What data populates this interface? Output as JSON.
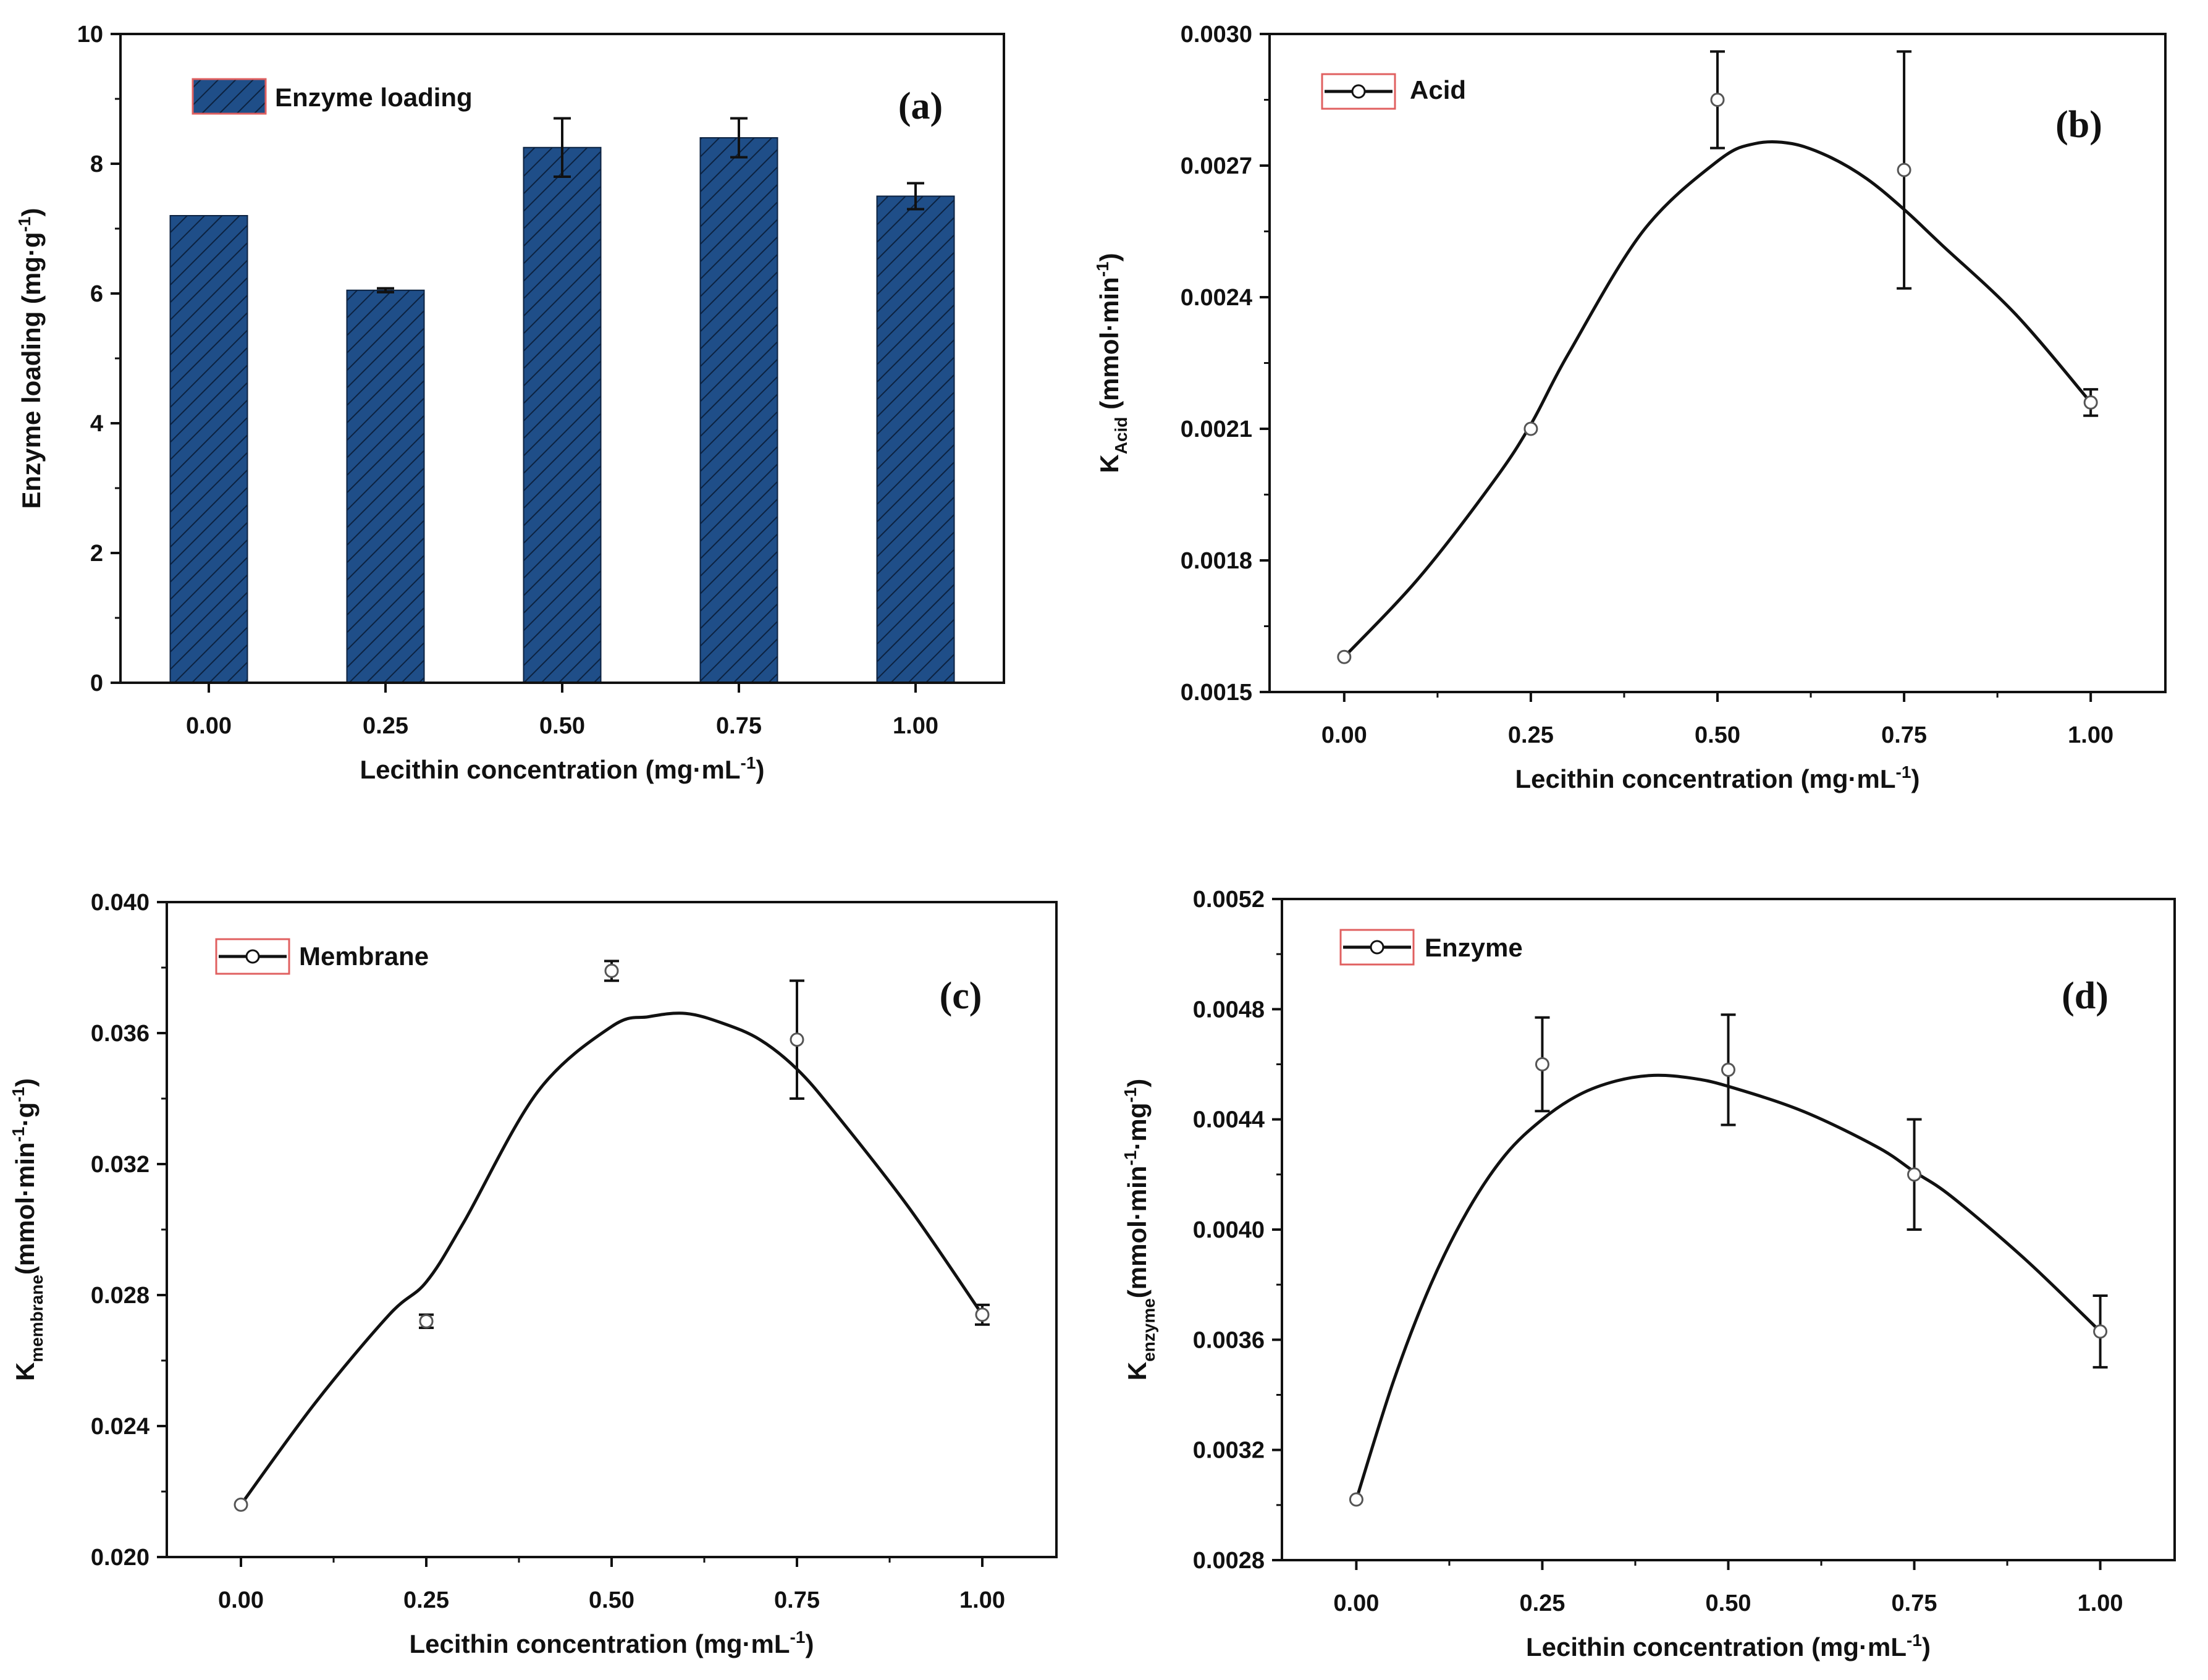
{
  "figure": {
    "xlabel_text": "Lecithin concentration (mg·mL",
    "xlabel_exp": "-1",
    "xlabel_close": ")"
  },
  "colors": {
    "bar_fill": "#1f4e88",
    "bar_hatch": "#0c2240",
    "legend_border": "#e06060",
    "line": "#111111",
    "axis": "#111111"
  },
  "chart_data": [
    {
      "panel": "(a)",
      "type": "bar",
      "categories": [
        "0.00",
        "0.25",
        "0.50",
        "0.75",
        "1.00"
      ],
      "values": [
        7.2,
        6.05,
        8.25,
        8.4,
        7.5
      ],
      "errors": [
        0,
        0.03,
        0.45,
        0.3,
        0.2
      ],
      "legend": "Enzyme loading",
      "ylabel": "Enzyme loading (mg·g",
      "ylabel_exp": "-1",
      "ylabel_close": ")",
      "ylim": [
        0,
        10
      ],
      "yticks": [
        "0",
        "2",
        "4",
        "6",
        "8",
        "10"
      ],
      "ytick_values": [
        0,
        2,
        4,
        6,
        8,
        10
      ]
    },
    {
      "panel": "(b)",
      "type": "line",
      "x": [
        0,
        0.25,
        0.5,
        0.75,
        1.0
      ],
      "y": [
        0.00158,
        0.0021,
        0.00285,
        0.00269,
        0.00216
      ],
      "errors": [
        0,
        0,
        0.00011,
        0.00027,
        3e-05
      ],
      "fit_x": [
        0,
        0.1,
        0.2,
        0.25,
        0.3,
        0.4,
        0.5,
        0.55,
        0.6,
        0.65,
        0.7,
        0.75,
        0.8,
        0.9,
        1.0
      ],
      "fit_y": [
        0.00158,
        0.00176,
        0.00198,
        0.00211,
        0.00227,
        0.00255,
        0.00271,
        0.00275,
        0.00275,
        0.00272,
        0.00267,
        0.0026,
        0.00252,
        0.00236,
        0.00216
      ],
      "legend": "Acid",
      "ylabel_main": "K",
      "ylabel_sub": "Acid",
      "ylabel_rest": " (mmol·min",
      "ylabel_exp": "-1",
      "ylabel_close": ")",
      "ylim": [
        0.0015,
        0.003
      ],
      "yticks": [
        "0.0015",
        "0.0018",
        "0.0021",
        "0.0024",
        "0.0027",
        "0.0030"
      ],
      "ytick_values": [
        0.0015,
        0.0018,
        0.0021,
        0.0024,
        0.0027,
        0.003
      ],
      "xticks": [
        "0.00",
        "0.25",
        "0.50",
        "0.75",
        "1.00"
      ],
      "xtick_values": [
        0,
        0.25,
        0.5,
        0.75,
        1.0
      ],
      "xlim": [
        -0.1,
        1.1
      ]
    },
    {
      "panel": "(c)",
      "type": "line",
      "x": [
        0,
        0.25,
        0.5,
        0.75,
        1.0
      ],
      "y": [
        0.0216,
        0.0272,
        0.0379,
        0.0358,
        0.0274
      ],
      "errors": [
        0,
        0.0002,
        0.0003,
        0.0018,
        0.0003
      ],
      "fit_x": [
        0,
        0.1,
        0.2,
        0.25,
        0.3,
        0.4,
        0.5,
        0.55,
        0.6,
        0.65,
        0.7,
        0.75,
        0.8,
        0.9,
        1.0
      ],
      "fit_y": [
        0.0216,
        0.0247,
        0.0274,
        0.0284,
        0.0302,
        0.0342,
        0.0362,
        0.0365,
        0.0366,
        0.0363,
        0.0358,
        0.0349,
        0.0336,
        0.0307,
        0.0274
      ],
      "legend": "Membrane",
      "ylabel_main": "K",
      "ylabel_sub": "membrane",
      "ylabel_rest": "(mmol·min",
      "ylabel_exp": "-1",
      "ylabel_mid": "·g",
      "ylabel_exp2": "-1",
      "ylabel_close": ")",
      "ylim": [
        0.02,
        0.04
      ],
      "yticks": [
        "0.020",
        "0.024",
        "0.028",
        "0.032",
        "0.036",
        "0.040"
      ],
      "ytick_values": [
        0.02,
        0.024,
        0.028,
        0.032,
        0.036,
        0.04
      ],
      "xticks": [
        "0.00",
        "0.25",
        "0.50",
        "0.75",
        "1.00"
      ],
      "xtick_values": [
        0,
        0.25,
        0.5,
        0.75,
        1.0
      ],
      "xlim": [
        -0.1,
        1.1
      ]
    },
    {
      "panel": "(d)",
      "type": "line",
      "x": [
        0,
        0.25,
        0.5,
        0.75,
        1.0
      ],
      "y": [
        0.00302,
        0.0046,
        0.00458,
        0.0042,
        0.00363
      ],
      "errors": [
        0,
        0.00017,
        0.0002,
        0.0002,
        0.00013
      ],
      "fit_x": [
        0,
        0.05,
        0.1,
        0.15,
        0.2,
        0.25,
        0.3,
        0.35,
        0.4,
        0.45,
        0.5,
        0.6,
        0.7,
        0.75,
        0.8,
        0.9,
        1.0
      ],
      "fit_y": [
        0.00302,
        0.00345,
        0.0038,
        0.00407,
        0.00427,
        0.0044,
        0.00449,
        0.00454,
        0.00456,
        0.00455,
        0.00452,
        0.00443,
        0.0043,
        0.00421,
        0.00412,
        0.00389,
        0.00363
      ],
      "legend": "Enzyme",
      "ylabel_main": "K",
      "ylabel_sub": "enzyme",
      "ylabel_rest": "(mmol·min",
      "ylabel_exp": "-1",
      "ylabel_mid": "·mg",
      "ylabel_exp2": "-1",
      "ylabel_close": ")",
      "ylim": [
        0.0028,
        0.0052
      ],
      "yticks": [
        "0.0028",
        "0.0032",
        "0.0036",
        "0.0040",
        "0.0044",
        "0.0048",
        "0.0052"
      ],
      "ytick_values": [
        0.0028,
        0.0032,
        0.0036,
        0.004,
        0.0044,
        0.0048,
        0.0052
      ],
      "xticks": [
        "0.00",
        "0.25",
        "0.50",
        "0.75",
        "1.00"
      ],
      "xtick_values": [
        0,
        0.25,
        0.5,
        0.75,
        1.0
      ],
      "xlim": [
        -0.1,
        1.1
      ]
    }
  ]
}
